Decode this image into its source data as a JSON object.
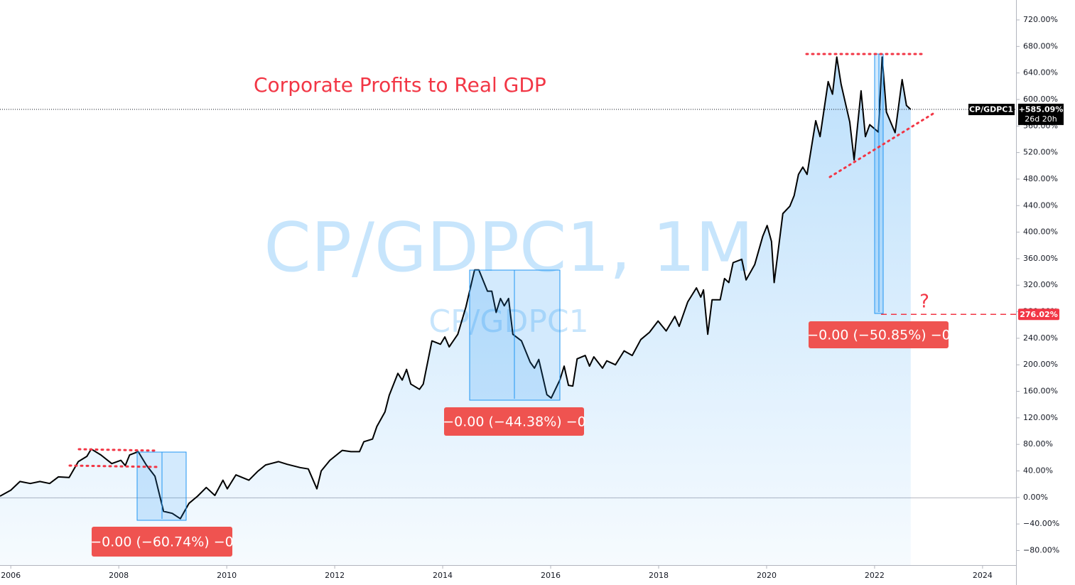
{
  "chart_data": {
    "type": "area",
    "title": "Corporate Profits to Real GDP",
    "watermark": "CP/GDPC1, 1M",
    "watermark_symbol": "CP/GDPC1",
    "symbol": "CP/GDPC1",
    "last_price": {
      "value": 585.09,
      "label": "+585.09%"
    },
    "countdown": "26d 20h",
    "target_price": {
      "value": 276.02,
      "label": "276.02%"
    },
    "question": "?",
    "measures": [
      "−0.00 (−60.74%) −0",
      "−0.00 (−44.38%) −0",
      "−0.00 (−50.85%) −0"
    ],
    "color": "#000000",
    "x": [
      2005.8,
      2006.0,
      2006.17,
      2006.36,
      2006.54,
      2006.72,
      2006.88,
      2007.08,
      2007.25,
      2007.41,
      2007.49,
      2007.67,
      2007.87,
      2008.04,
      2008.12,
      2008.2,
      2008.36,
      2008.51,
      2008.67,
      2008.83,
      2008.99,
      2009.14,
      2009.3,
      2009.46,
      2009.62,
      2009.78,
      2009.93,
      2010.01,
      2010.17,
      2010.41,
      2010.57,
      2010.72,
      2010.96,
      2011.12,
      2011.36,
      2011.51,
      2011.67,
      2011.75,
      2011.91,
      2012.14,
      2012.3,
      2012.46,
      2012.54,
      2012.7,
      2012.78,
      2012.93,
      2013.01,
      2013.17,
      2013.25,
      2013.33,
      2013.41,
      2013.57,
      2013.64,
      2013.8,
      2013.96,
      2014.04,
      2014.12,
      2014.28,
      2014.43,
      2014.59,
      2014.67,
      2014.83,
      2014.91,
      2014.99,
      2015.07,
      2015.14,
      2015.22,
      2015.3,
      2015.46,
      2015.62,
      2015.7,
      2015.78,
      2015.93,
      2016.01,
      2016.17,
      2016.25,
      2016.33,
      2016.41,
      2016.49,
      2016.64,
      2016.72,
      2016.8,
      2016.96,
      2017.04,
      2017.2,
      2017.36,
      2017.51,
      2017.67,
      2017.83,
      2017.99,
      2018.14,
      2018.3,
      2018.38,
      2018.54,
      2018.7,
      2018.78,
      2018.83,
      2018.91,
      2018.99,
      2019.14,
      2019.22,
      2019.3,
      2019.38,
      2019.54,
      2019.62,
      2019.78,
      2019.93,
      2020.01,
      2020.09,
      2020.14,
      2020.3,
      2020.43,
      2020.51,
      2020.59,
      2020.67,
      2020.75,
      2020.91,
      2020.99,
      2021.14,
      2021.22,
      2021.3,
      2021.38,
      2021.54,
      2021.62,
      2021.75,
      2021.83,
      2021.91,
      2022.07,
      2022.14,
      2022.22,
      2022.38,
      2022.51,
      2022.59,
      2022.67
    ],
    "values": [
      2,
      11,
      24,
      21,
      24,
      21,
      31,
      30,
      54,
      62,
      73,
      64,
      51,
      56,
      48,
      64,
      69,
      49,
      32,
      -21,
      -24,
      -32,
      -9,
      2,
      15,
      3,
      26,
      13,
      34,
      26,
      39,
      49,
      54,
      50,
      45,
      43,
      13,
      40,
      56,
      71,
      69,
      69,
      84,
      88,
      107,
      129,
      154,
      187,
      177,
      193,
      171,
      163,
      171,
      236,
      231,
      242,
      227,
      246,
      287,
      343,
      343,
      311,
      311,
      279,
      300,
      289,
      300,
      246,
      236,
      204,
      195,
      208,
      155,
      150,
      177,
      198,
      169,
      168,
      209,
      214,
      198,
      212,
      195,
      206,
      200,
      221,
      214,
      238,
      249,
      266,
      251,
      273,
      258,
      295,
      316,
      302,
      313,
      246,
      298,
      298,
      330,
      324,
      354,
      359,
      328,
      351,
      394,
      410,
      386,
      324,
      428,
      439,
      455,
      487,
      498,
      487,
      568,
      544,
      627,
      608,
      664,
      623,
      566,
      509,
      613,
      544,
      562,
      551,
      664,
      581,
      550,
      630,
      591,
      585
    ],
    "xlim": [
      2005.8,
      2024.62
    ],
    "xticks": [
      2006,
      2008,
      2010,
      2012,
      2014,
      2016,
      2018,
      2020,
      2022,
      2024
    ],
    "ylim": [
      -102,
      750
    ],
    "yticks": [
      {
        "value": -80,
        "label": "−80.00%"
      },
      {
        "value": -40,
        "label": "−40.00%"
      },
      {
        "value": 0,
        "label": "0.00%"
      },
      {
        "value": 40,
        "label": "40.00%"
      },
      {
        "value": 80,
        "label": "80.00%"
      },
      {
        "value": 120,
        "label": "120.00%"
      },
      {
        "value": 160,
        "label": "160.00%"
      },
      {
        "value": 200,
        "label": "200.00%"
      },
      {
        "value": 240,
        "label": "240.00%"
      },
      {
        "value": 280,
        "label": "280.00%"
      },
      {
        "value": 320,
        "label": "320.00%"
      },
      {
        "value": 360,
        "label": "360.00%"
      },
      {
        "value": 400,
        "label": "400.00%"
      },
      {
        "value": 440,
        "label": "440.00%"
      },
      {
        "value": 480,
        "label": "480.00%"
      },
      {
        "value": 520,
        "label": "520.00%"
      },
      {
        "value": 560,
        "label": "560.00%"
      },
      {
        "value": 600,
        "label": "600.00%"
      },
      {
        "value": 640,
        "label": "640.00%"
      },
      {
        "value": 680,
        "label": "680.00%"
      },
      {
        "value": 720,
        "label": "720.00%"
      }
    ]
  }
}
